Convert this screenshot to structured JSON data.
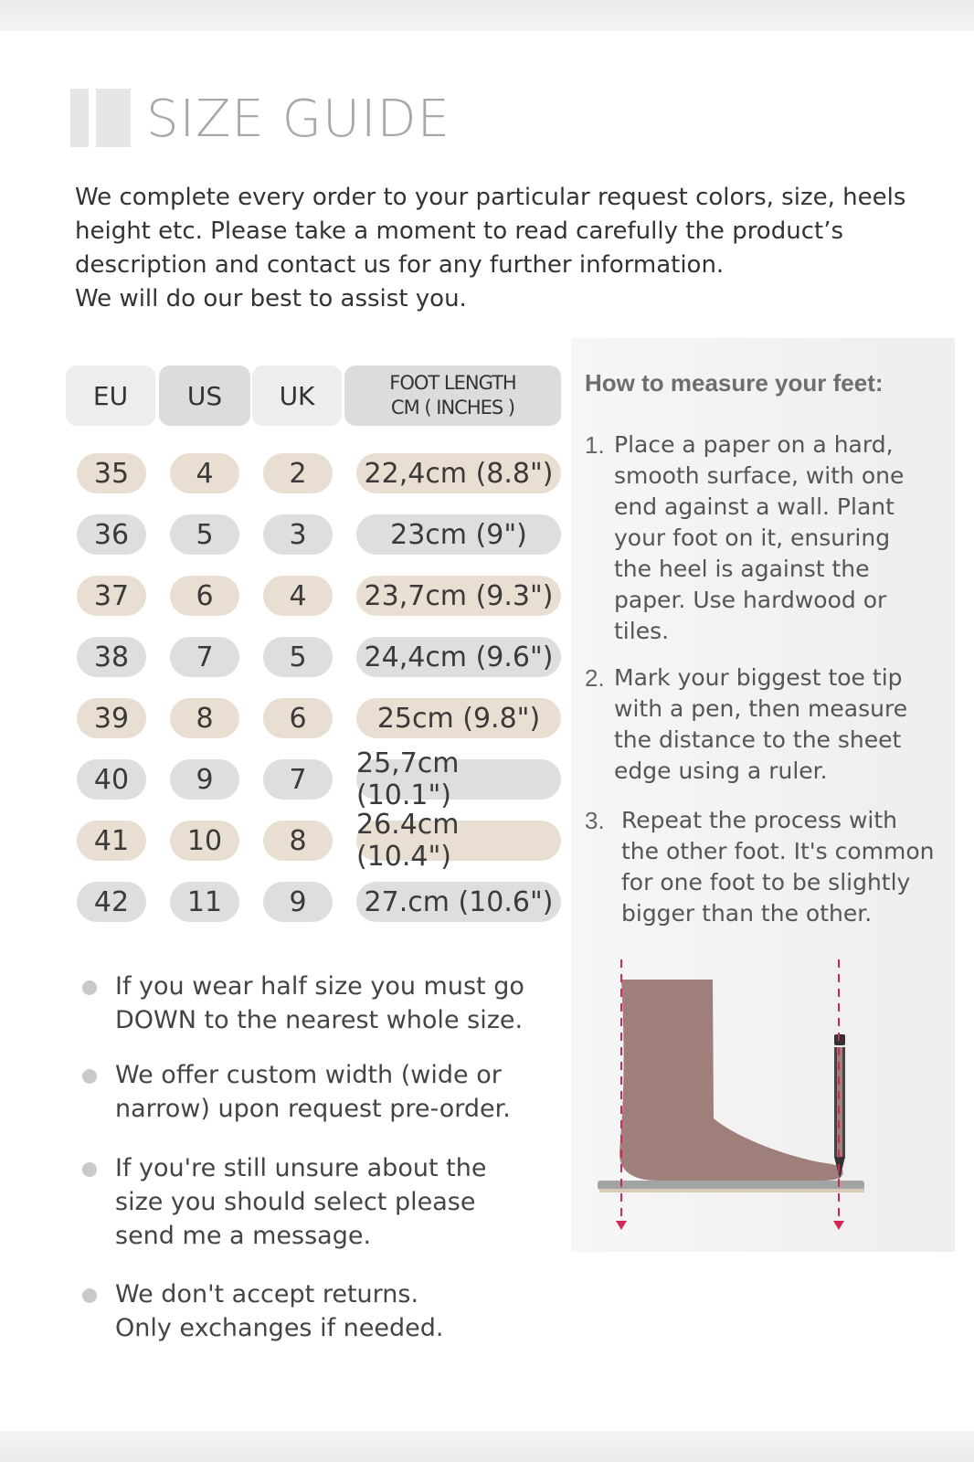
{
  "title": "SIZE GUIDE",
  "intro": [
    "We complete every order to your particular request colors, size, heels",
    "height etc. Please take a moment to read carefully the product’s",
    "description and contact us for any further information.",
    "We will do our best to assist you."
  ],
  "table": {
    "headers": [
      "EU",
      "US",
      "UK",
      "FOOT LENGTH",
      "CM ( INCHES )"
    ],
    "rows": [
      [
        "35",
        "4",
        "2",
        "22,4cm (8.8\")"
      ],
      [
        "36",
        "5",
        "3",
        "23cm (9\")"
      ],
      [
        "37",
        "6",
        "4",
        "23,7cm (9.3\")"
      ],
      [
        "38",
        "7",
        "5",
        "24,4cm (9.6\")"
      ],
      [
        "39",
        "8",
        "6",
        "25cm (9.8\")"
      ],
      [
        "40",
        "9",
        "7",
        "25,7cm (10.1\")"
      ],
      [
        "41",
        "10",
        "8",
        "26.4cm (10.4\")"
      ],
      [
        "42",
        "11",
        "9",
        "27.cm (10.6\")"
      ]
    ]
  },
  "howto": {
    "heading": "How to measure your feet:",
    "steps": [
      {
        "n": "1.",
        "lines": [
          "Place a paper on a hard,",
          "smooth surface, with one",
          "end against a wall. Plant",
          "your foot on it, ensuring",
          "the heel is against the",
          "paper. Use hardwood or",
          "tiles."
        ]
      },
      {
        "n": "2.",
        "lines": [
          "Mark your biggest toe tip",
          "with a pen, then measure",
          "the distance to the sheet",
          "edge using a ruler."
        ]
      },
      {
        "n": "3.",
        "lines": [
          "Repeat the process with",
          "the other foot. It's common",
          "for one foot to be slightly",
          "bigger than the other."
        ]
      }
    ]
  },
  "notes": [
    [
      "If you wear half size you must go",
      "DOWN to the nearest whole size."
    ],
    [
      "We offer custom width (wide or",
      "narrow) upon request pre-order."
    ],
    [
      "If you're still unsure about the",
      "size you should select please",
      "send me a message."
    ],
    [
      "We don't accept returns.",
      "Only exchanges if needed."
    ]
  ],
  "colors": {
    "beige": "#e8ded1",
    "gray": "#dedede",
    "foot": "#9e7f79",
    "guide": "#d1275a"
  }
}
